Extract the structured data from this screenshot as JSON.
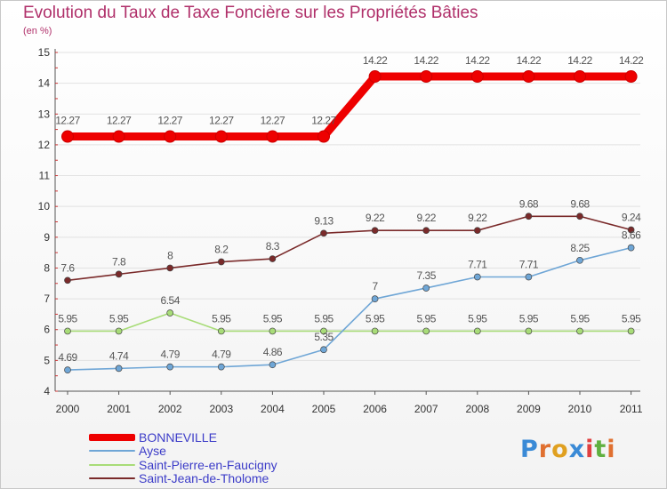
{
  "chart_data": {
    "type": "line",
    "title": "Evolution du Taux de Taxe Foncière sur les Propriétés Bâties",
    "unit_label": "(en %)",
    "xlabel": "",
    "ylabel": "",
    "ylim": [
      4,
      15
    ],
    "y_ticks": [
      "4",
      "5",
      "6",
      "7",
      "8",
      "9",
      "10",
      "11",
      "12",
      "13",
      "14",
      "15"
    ],
    "categories": [
      "2000",
      "2001",
      "2002",
      "2003",
      "2004",
      "2005",
      "2006",
      "2007",
      "2008",
      "2009",
      "2010",
      "2011"
    ],
    "grid": true,
    "legend_position": "bottom-left",
    "series": [
      {
        "name": "BONNEVILLE",
        "color": "#ee0000",
        "values": [
          12.27,
          12.27,
          12.27,
          12.27,
          12.27,
          12.27,
          14.22,
          14.22,
          14.22,
          14.22,
          14.22,
          14.22
        ],
        "labels": [
          "12.27",
          "12.27",
          "12.27",
          "12.27",
          "12.27",
          "12.27",
          "14.22",
          "14.22",
          "14.22",
          "14.22",
          "14.22",
          "14.22"
        ]
      },
      {
        "name": "Ayse",
        "color": "#6fa6d6",
        "values": [
          4.69,
          4.74,
          4.79,
          4.79,
          4.86,
          5.35,
          7,
          7.35,
          7.71,
          7.71,
          8.25,
          8.66
        ],
        "labels": [
          "4.69",
          "4.74",
          "4.79",
          "4.79",
          "4.86",
          "5.35",
          "7",
          "7.35",
          "7.71",
          "7.71",
          "8.25",
          "8.66"
        ]
      },
      {
        "name": "Saint-Pierre-en-Faucigny",
        "color": "#a8dc78",
        "values": [
          5.95,
          5.95,
          6.54,
          5.95,
          5.95,
          5.95,
          5.95,
          5.95,
          5.95,
          5.95,
          5.95,
          5.95
        ],
        "labels": [
          "5.95",
          "5.95",
          "6.54",
          "5.95",
          "5.95",
          "5.95",
          "5.95",
          "5.95",
          "5.95",
          "5.95",
          "5.95",
          "5.95"
        ]
      },
      {
        "name": "Saint-Jean-de-Tholome",
        "color": "#7a2a2a",
        "values": [
          7.6,
          7.8,
          8,
          8.2,
          8.3,
          9.13,
          9.22,
          9.22,
          9.22,
          9.68,
          9.68,
          9.24
        ],
        "labels": [
          "7.6",
          "7.8",
          "8",
          "8.2",
          "8.3",
          "9.13",
          "9.22",
          "9.22",
          "9.22",
          "9.68",
          "9.68",
          "9.24"
        ]
      }
    ]
  },
  "logo": {
    "letters": [
      "P",
      "r",
      "o",
      "x",
      "i",
      "t",
      "i"
    ],
    "colors": [
      "#3a8ad6",
      "#e07030",
      "#e0a020",
      "#3a8ad6",
      "#e04040",
      "#60b040",
      "#e07030"
    ]
  }
}
